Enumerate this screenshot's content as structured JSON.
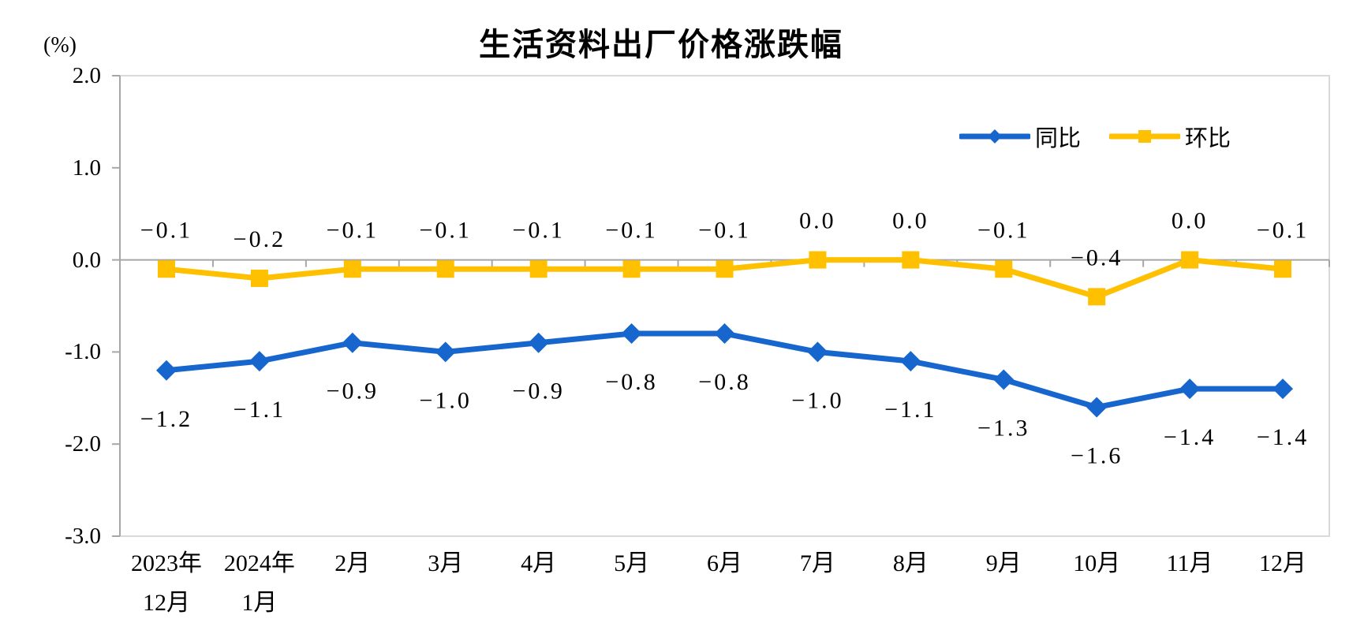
{
  "chart_data": {
    "type": "line",
    "title": "生活资料出厂价格涨跌幅",
    "unit": "(%)",
    "categories": [
      "2023年\n12月",
      "2024年\n1月",
      "2月",
      "3月",
      "4月",
      "5月",
      "6月",
      "7月",
      "8月",
      "9月",
      "10月",
      "11月",
      "12月"
    ],
    "series": [
      {
        "key": "yoy",
        "name": "同比",
        "color": "#1666CE",
        "marker": "diamond",
        "label_position": "below",
        "values": [
          -1.2,
          -1.1,
          -0.9,
          -1.0,
          -0.9,
          -0.8,
          -0.8,
          -1.0,
          -1.1,
          -1.3,
          -1.6,
          -1.4,
          -1.4
        ]
      },
      {
        "key": "mom",
        "name": "环比",
        "color": "#FFC000",
        "marker": "square",
        "label_position": "above",
        "values": [
          -0.1,
          -0.2,
          -0.1,
          -0.1,
          -0.1,
          -0.1,
          -0.1,
          0.0,
          0.0,
          -0.1,
          -0.4,
          0.0,
          -0.1
        ]
      }
    ],
    "y_axis": {
      "min": -3.0,
      "max": 2.0,
      "step": 1.0,
      "tick_labels": [
        "2.0",
        "1.0",
        "0.0",
        "-1.0",
        "-2.0",
        "-3.0"
      ]
    },
    "colors": {
      "axis": "#A6A6A6",
      "border": "#D9D9D9",
      "text": "#000000"
    },
    "grid": false,
    "legend_position": "top-right",
    "data_labels": true
  }
}
